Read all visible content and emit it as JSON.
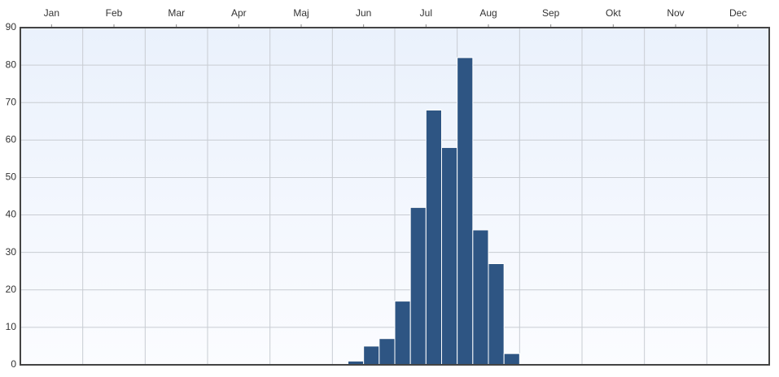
{
  "chart_data": {
    "type": "bar",
    "categories": [
      "Jan",
      "Feb",
      "Mar",
      "Apr",
      "Maj",
      "Jun",
      "Jul",
      "Aug",
      "Sep",
      "Okt",
      "Nov",
      "Dec"
    ],
    "values": [
      [
        0,
        0,
        0,
        0
      ],
      [
        0,
        0,
        0,
        0
      ],
      [
        0,
        0,
        0,
        0
      ],
      [
        0,
        0,
        0,
        0
      ],
      [
        0,
        0,
        0,
        0
      ],
      [
        0,
        1,
        5,
        7
      ],
      [
        17,
        42,
        68,
        58
      ],
      [
        82,
        36,
        27,
        3
      ],
      [
        0,
        0,
        0,
        0
      ],
      [
        0,
        0,
        0,
        0
      ],
      [
        0,
        0,
        0,
        0
      ],
      [
        0,
        0,
        0,
        0
      ]
    ],
    "color": "#2e5583",
    "ylim": [
      0,
      90
    ],
    "yticks": [
      0,
      10,
      20,
      30,
      40,
      50,
      60,
      70,
      80,
      90
    ],
    "grid": true
  }
}
